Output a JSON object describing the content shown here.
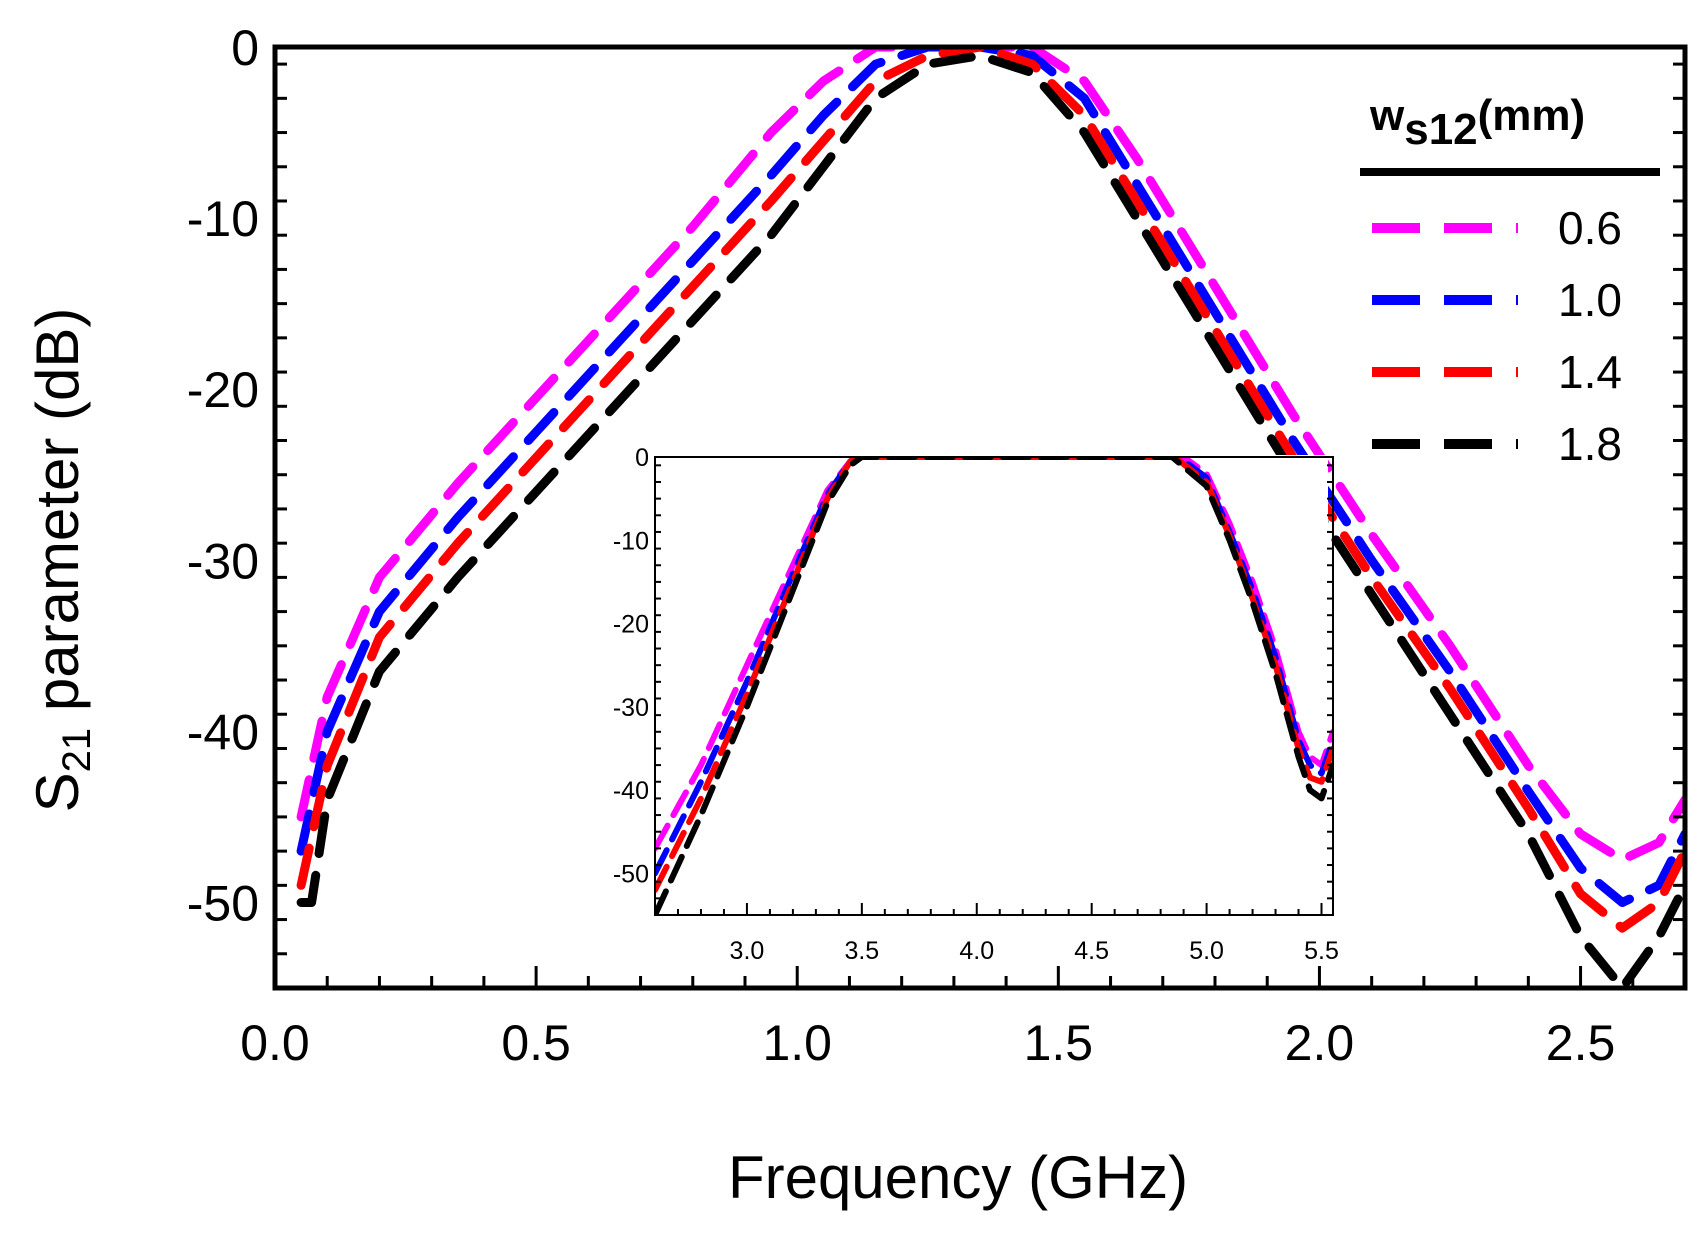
{
  "chart_data": [
    {
      "id": "main",
      "type": "line",
      "xlabel": "Frequency (GHz)",
      "ylabel_main": "S",
      "ylabel_sub": "21",
      "ylabel_rest": " parameter (dB)",
      "xlim": [
        0,
        2.7
      ],
      "ylim": [
        -55,
        0
      ],
      "xticks": [
        0.0,
        0.5,
        1.0,
        1.5,
        2.0,
        2.5
      ],
      "xtick_labels": [
        "0.0",
        "0.5",
        "1.0",
        "1.5",
        "2.0",
        "2.5"
      ],
      "yticks": [
        0,
        -10,
        -20,
        -30,
        -40,
        -50
      ],
      "ytick_labels": [
        "0",
        "-10",
        "-20",
        "-30",
        "-40",
        "-50"
      ],
      "legend_title_main": "w",
      "legend_title_sub": "s12",
      "legend_title_rest": "(mm)",
      "series": [
        {
          "name": "0.6",
          "color": "#ff00ff",
          "x": [
            0.05,
            0.1,
            0.2,
            0.35,
            0.5,
            0.65,
            0.8,
            0.95,
            1.05,
            1.15,
            1.25,
            1.35,
            1.45,
            1.55,
            1.65,
            1.8,
            1.95,
            2.1,
            2.25,
            2.4,
            2.5,
            2.58,
            2.65,
            2.7
          ],
          "y": [
            -45,
            -38,
            -31,
            -25.5,
            -20.5,
            -15.5,
            -10.5,
            -5,
            -2,
            0,
            0,
            0,
            0,
            -2,
            -6.5,
            -14,
            -21.5,
            -28.5,
            -35,
            -42,
            -46,
            -47.5,
            -46.5,
            -44
          ]
        },
        {
          "name": "1.0",
          "color": "#0000ff",
          "x": [
            0.05,
            0.1,
            0.2,
            0.35,
            0.5,
            0.65,
            0.8,
            0.95,
            1.05,
            1.15,
            1.25,
            1.35,
            1.45,
            1.55,
            1.65,
            1.8,
            1.95,
            2.1,
            2.25,
            2.4,
            2.5,
            2.58,
            2.65,
            2.7
          ],
          "y": [
            -47,
            -40,
            -33,
            -27.5,
            -22.5,
            -17.5,
            -12.5,
            -7.5,
            -4,
            -1,
            0,
            0,
            -0.5,
            -3,
            -8,
            -15.5,
            -23,
            -30,
            -36.5,
            -43.5,
            -48,
            -50,
            -49,
            -46
          ]
        },
        {
          "name": "1.4",
          "color": "#ff0000",
          "x": [
            0.05,
            0.1,
            0.2,
            0.35,
            0.5,
            0.65,
            0.8,
            0.95,
            1.05,
            1.15,
            1.25,
            1.35,
            1.45,
            1.55,
            1.65,
            1.8,
            1.95,
            2.1,
            2.25,
            2.4,
            2.5,
            2.58,
            2.65,
            2.7
          ],
          "y": [
            -49,
            -42,
            -34.5,
            -29,
            -24,
            -19,
            -14,
            -9,
            -5.5,
            -2,
            -0.5,
            0,
            -1,
            -4,
            -9,
            -16.5,
            -24,
            -31,
            -37.5,
            -44.5,
            -49.5,
            -51.5,
            -50,
            -47
          ]
        },
        {
          "name": "1.8",
          "color": "#000000",
          "x": [
            0.05,
            0.07,
            0.1,
            0.2,
            0.35,
            0.5,
            0.65,
            0.8,
            0.95,
            1.05,
            1.15,
            1.25,
            1.35,
            1.45,
            1.55,
            1.65,
            1.8,
            1.95,
            2.1,
            2.25,
            2.4,
            2.5,
            2.58,
            2.65,
            2.7
          ],
          "y": [
            -50,
            -50,
            -44,
            -36.5,
            -31,
            -26,
            -21,
            -16,
            -11,
            -7,
            -3,
            -1,
            -0.5,
            -1.5,
            -5,
            -10,
            -17.5,
            -25,
            -32,
            -39,
            -46,
            -52,
            -55,
            -52,
            -49
          ]
        }
      ]
    },
    {
      "id": "inset",
      "type": "line",
      "xlim": [
        2.6,
        5.55
      ],
      "ylim": [
        -55,
        0
      ],
      "xticks": [
        3.0,
        3.5,
        4.0,
        4.5,
        5.0,
        5.5
      ],
      "xtick_labels": [
        "3.0",
        "3.5",
        "4.0",
        "4.5",
        "5.0",
        "5.5"
      ],
      "yticks": [
        0,
        -10,
        -20,
        -30,
        -40,
        -50
      ],
      "ytick_labels": [
        "0",
        "-10",
        "-20",
        "-30",
        "-40",
        "-50"
      ],
      "series": [
        {
          "name": "0.6",
          "color": "#ff00ff",
          "x": [
            2.6,
            2.8,
            3.0,
            3.2,
            3.35,
            3.45,
            3.5,
            4.0,
            4.5,
            4.9,
            5.0,
            5.1,
            5.2,
            5.3,
            5.4,
            5.45,
            5.5,
            5.55
          ],
          "y": [
            -47,
            -37,
            -25,
            -13,
            -4,
            -0.5,
            0,
            0,
            0,
            0,
            -2,
            -8,
            -15,
            -23,
            -33,
            -36,
            -37,
            -33
          ]
        },
        {
          "name": "1.0",
          "color": "#0000ff",
          "x": [
            2.6,
            2.8,
            3.0,
            3.2,
            3.35,
            3.45,
            3.5,
            4.0,
            4.5,
            4.88,
            5.0,
            5.1,
            5.2,
            5.3,
            5.4,
            5.45,
            5.5,
            5.55
          ],
          "y": [
            -50,
            -39,
            -27,
            -14,
            -4.5,
            -0.5,
            0,
            0,
            0,
            0,
            -2.5,
            -9,
            -16,
            -24,
            -34,
            -37,
            -38,
            -34
          ]
        },
        {
          "name": "1.4",
          "color": "#ff0000",
          "x": [
            2.6,
            2.8,
            3.0,
            3.2,
            3.35,
            3.45,
            3.5,
            4.0,
            4.5,
            4.86,
            5.0,
            5.1,
            5.2,
            5.3,
            5.4,
            5.45,
            5.5,
            5.55
          ],
          "y": [
            -52,
            -41,
            -28.5,
            -15,
            -5,
            -0.5,
            0,
            0,
            0,
            0,
            -3,
            -9.5,
            -17,
            -25,
            -35,
            -38.5,
            -39,
            -35
          ]
        },
        {
          "name": "1.8",
          "color": "#000000",
          "x": [
            2.6,
            2.8,
            3.0,
            3.2,
            3.35,
            3.45,
            3.5,
            4.0,
            4.5,
            4.85,
            5.0,
            5.1,
            5.2,
            5.3,
            5.4,
            5.45,
            5.5,
            5.55
          ],
          "y": [
            -55,
            -43,
            -30,
            -16,
            -5.5,
            -1,
            0,
            0,
            0,
            0,
            -3.5,
            -10,
            -17.5,
            -26,
            -36,
            -40,
            -41,
            -37
          ]
        }
      ]
    }
  ]
}
